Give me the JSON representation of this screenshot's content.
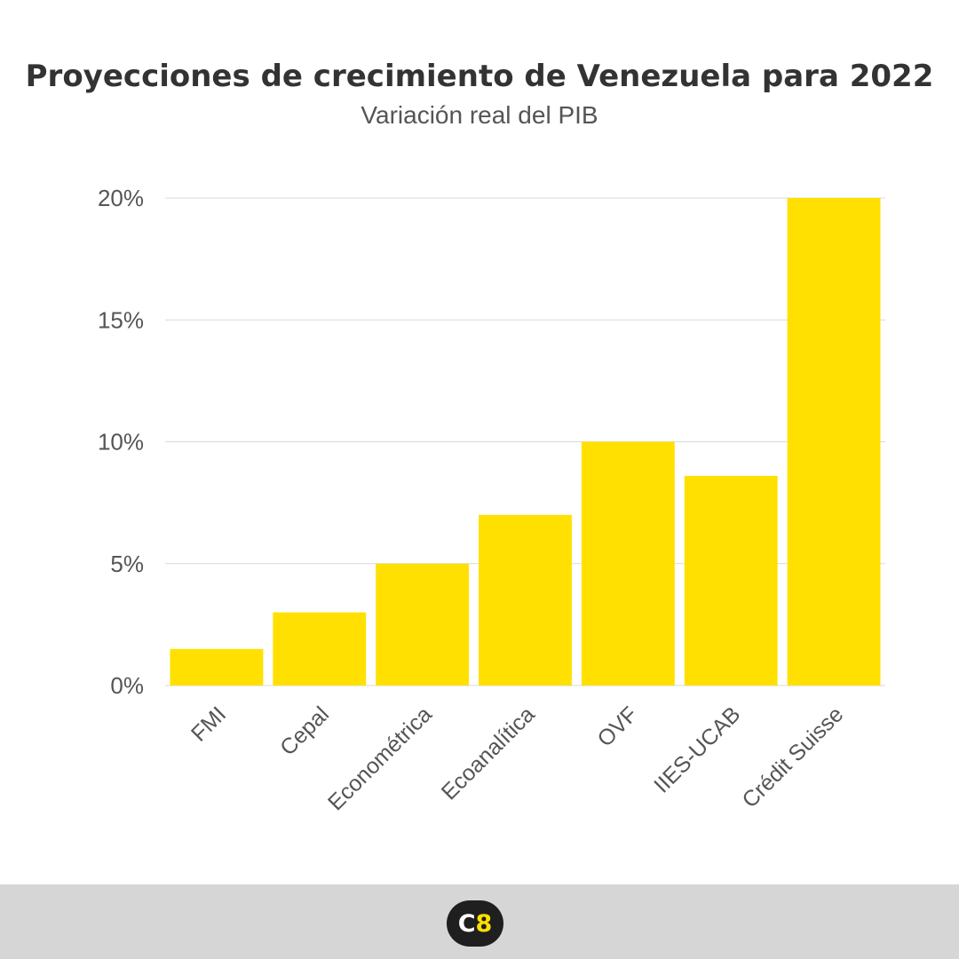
{
  "colors": {
    "bar": "#ffe000",
    "grid": "#d9d9d9",
    "text": "#555555",
    "title": "#333333",
    "footer": "#d6d6d6"
  },
  "footer": {
    "logo_text_main": "C",
    "logo_text_accent": "8"
  },
  "chart_data": {
    "type": "bar",
    "title": "Proyecciones de crecimiento de Venezuela para 2022",
    "subtitle": "Variación real del PIB",
    "xlabel": "",
    "ylabel": "",
    "categories": [
      "FMI",
      "Cepal",
      "Econométrica",
      "Ecoanalítica",
      "OVF",
      "IIES-UCAB",
      "Crédit Suisse"
    ],
    "values": [
      1.5,
      3,
      5,
      7,
      10,
      8.6,
      20
    ],
    "ylim": [
      0,
      20
    ],
    "yticks": [
      0,
      5,
      10,
      15,
      20
    ],
    "ytick_labels": [
      "0%",
      "5%",
      "10%",
      "15%",
      "20%"
    ],
    "grid": true,
    "legend": "none"
  }
}
